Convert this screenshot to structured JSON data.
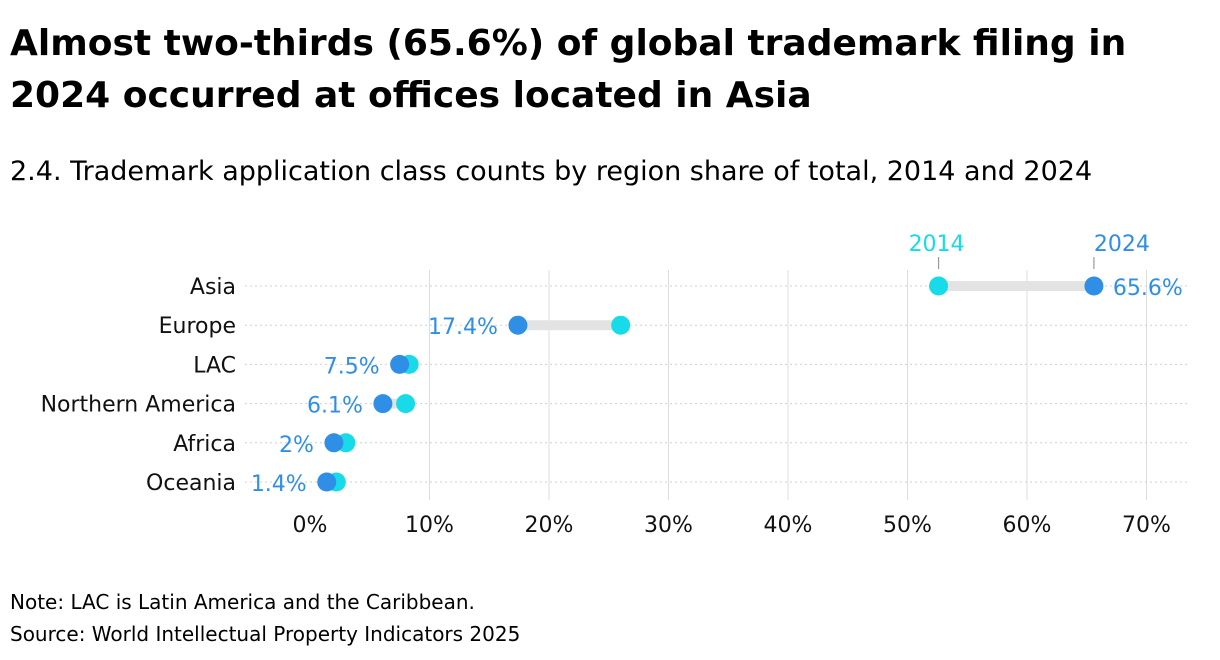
{
  "title": "Almost two-thirds (65.6%) of global trademark filing in 2024 occurred at offices located in Asia",
  "subtitle": "2.4. Trademark application class counts by region share of total, 2014 and 2024",
  "note": "Note: LAC is Latin America and the Caribbean.",
  "source": "Source: World Intellectual Property Indicators 2025",
  "colors": {
    "y2014": "#17dbe8",
    "y2024": "#2f8fe6",
    "connector": "#e3e3e3",
    "grid": "#dddddd",
    "label2024": "#2f8fe6"
  },
  "chart_data": {
    "type": "dumbbell",
    "title": "2.4. Trademark application class counts by region share of total, 2014 and 2024",
    "categories": [
      "Asia",
      "Europe",
      "LAC",
      "Northern America",
      "Africa",
      "Oceania"
    ],
    "series": [
      {
        "name": "2014",
        "values": [
          52.6,
          26.0,
          8.3,
          8.0,
          3.0,
          2.2
        ]
      },
      {
        "name": "2024",
        "values": [
          65.6,
          17.4,
          7.5,
          6.1,
          2.0,
          1.4
        ]
      }
    ],
    "value_labels": [
      "65.6%",
      "17.4%",
      "7.5%",
      "6.1%",
      "2%",
      "1.4%"
    ],
    "x_ticks": [
      0,
      10,
      20,
      30,
      40,
      50,
      60,
      70
    ],
    "x_tick_labels": [
      "0%",
      "10%",
      "20%",
      "30%",
      "40%",
      "50%",
      "60%",
      "70%"
    ],
    "xlim": [
      0,
      73.5
    ],
    "grid": true,
    "legend_placement": "top, annotating the Asia row"
  }
}
